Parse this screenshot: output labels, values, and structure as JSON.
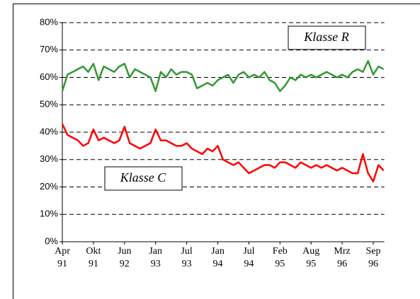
{
  "chart_data": {
    "type": "line",
    "categories": [
      "Apr 91",
      null,
      null,
      null,
      null,
      null,
      "Okt 91",
      null,
      null,
      null,
      null,
      null,
      "Jun 92",
      null,
      null,
      null,
      null,
      null,
      "Jan 93",
      null,
      null,
      null,
      null,
      null,
      "Jul 93",
      null,
      null,
      null,
      null,
      null,
      "Jan 94",
      null,
      null,
      null,
      null,
      null,
      "Jul 94",
      null,
      null,
      null,
      null,
      null,
      "Feb 95",
      null,
      null,
      null,
      null,
      null,
      "Aug 95",
      null,
      null,
      null,
      null,
      null,
      "Mrz 96",
      null,
      null,
      null,
      null,
      null,
      "Sep 96",
      null,
      null
    ],
    "series": [
      {
        "name": "Klasse R",
        "color": "#339933",
        "values": [
          55,
          61,
          62,
          63,
          64,
          62,
          65,
          59,
          64,
          63,
          62,
          64,
          65,
          60,
          63,
          62,
          61,
          60,
          55,
          62,
          60,
          63,
          61,
          62,
          62,
          61,
          56,
          57,
          58,
          57,
          59,
          60,
          61,
          58,
          61,
          62,
          60,
          61,
          60,
          62,
          59,
          58,
          55,
          57,
          60,
          59,
          61,
          60,
          61,
          60,
          61,
          62,
          61,
          60,
          61,
          60,
          62,
          63,
          62,
          66,
          61,
          64,
          63
        ]
      },
      {
        "name": "Klasse C",
        "color": "#ff0000",
        "values": [
          43,
          39,
          38,
          37,
          35,
          36,
          41,
          37,
          38,
          37,
          36,
          37,
          42,
          36,
          35,
          34,
          35,
          36,
          41,
          37,
          37,
          36,
          35,
          35,
          36,
          34,
          33,
          32,
          34,
          33,
          35,
          30,
          29,
          28,
          29,
          27,
          25,
          26,
          27,
          28,
          28,
          27,
          29,
          29,
          28,
          27,
          29,
          28,
          27,
          28,
          27,
          28,
          27,
          26,
          27,
          26,
          25,
          25,
          32,
          25,
          22,
          28,
          26
        ]
      }
    ],
    "annotations": [
      "Klasse R",
      "Klasse C"
    ],
    "ylim": [
      0,
      80
    ],
    "yticks": [
      {
        "value": 0,
        "label": "0%"
      },
      {
        "value": 10,
        "label": "10%"
      },
      {
        "value": 20,
        "label": "20%"
      },
      {
        "value": 30,
        "label": "30%"
      },
      {
        "value": 40,
        "label": "40%"
      },
      {
        "value": 50,
        "label": "50%"
      },
      {
        "value": 60,
        "label": "60%"
      },
      {
        "value": 70,
        "label": "70%"
      },
      {
        "value": 80,
        "label": "80%"
      }
    ],
    "grid": true
  }
}
